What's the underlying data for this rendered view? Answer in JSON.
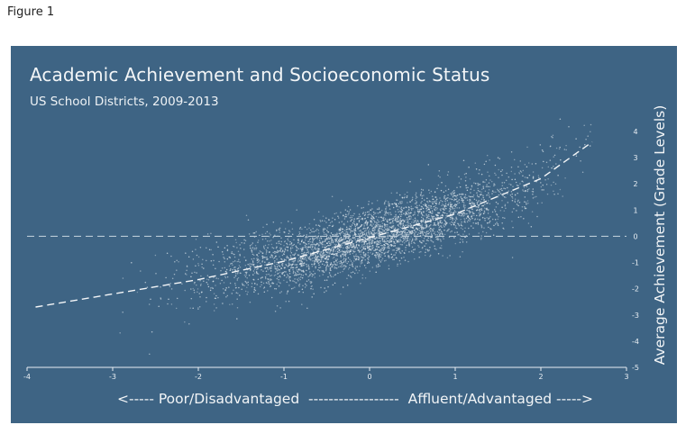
{
  "figure_label": "Figure 1",
  "colors": {
    "panel": "#3e6484",
    "points": "#e6edf2",
    "trend": "#f4f6f8",
    "zero_line": "#b9c9d6"
  },
  "chart_data": {
    "type": "scatter",
    "title": "Academic Achievement and Socioeconomic Status",
    "subtitle": "US School Districts, 2009-2013",
    "ylabel": "Average Achievement (Grade Levels)",
    "xlabel_left": "<----- Poor/Disadvantaged",
    "xlabel_right": "Affluent/Advantaged ----->",
    "xlim": [
      -4,
      3
    ],
    "ylim": [
      -5,
      4
    ],
    "x_ticks": [
      "-4",
      "-3",
      "-2",
      "-1",
      "0",
      "1",
      "2",
      "3"
    ],
    "y_ticks": [
      "-5",
      "-4",
      "-3",
      "-2",
      "-1",
      "0",
      "1",
      "2",
      "3",
      "4"
    ],
    "zero_line_y": 0,
    "trend_line": {
      "style": "dashed",
      "x": [
        -3.9,
        -3.0,
        -2.0,
        -1.0,
        0.0,
        1.0,
        2.0,
        2.6
      ],
      "y": [
        -2.7,
        -2.2,
        -1.65,
        -0.95,
        -0.05,
        0.85,
        2.2,
        3.6
      ]
    },
    "point_cloud": {
      "description_free": true,
      "x_range": [
        -3.9,
        2.6
      ],
      "density_peak_x": 0.0,
      "spread_y": 0.75
    },
    "grid": false,
    "legend": "none"
  }
}
